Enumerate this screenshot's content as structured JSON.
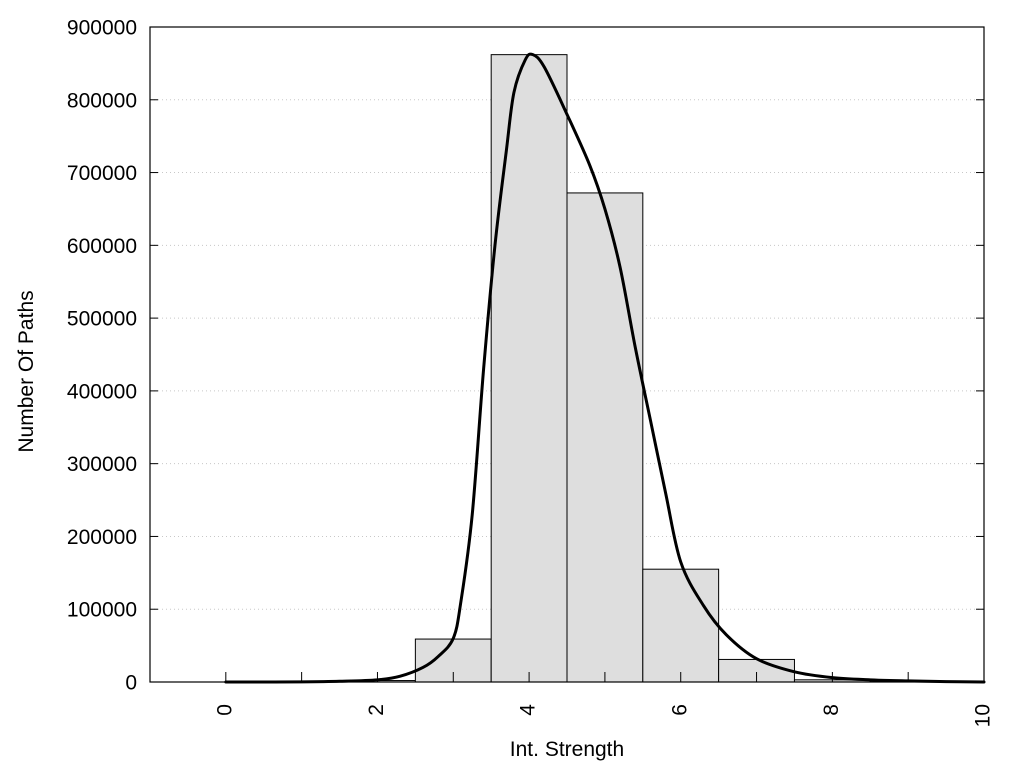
{
  "chart_data": {
    "type": "bar",
    "title": "",
    "xlabel": "Int. Strength",
    "ylabel": "Number Of Paths",
    "xlim": [
      -1,
      10
    ],
    "ylim": [
      0,
      900000
    ],
    "x_ticks": [
      0,
      2,
      4,
      6,
      8,
      10
    ],
    "x_tick_labels": [
      "0",
      "2",
      "4",
      "6",
      "8",
      "10"
    ],
    "y_ticks": [
      0,
      100000,
      200000,
      300000,
      400000,
      500000,
      600000,
      700000,
      800000,
      900000
    ],
    "y_tick_labels": [
      "0",
      "100000",
      "200000",
      "300000",
      "400000",
      "500000",
      "600000",
      "700000",
      "800000",
      "900000"
    ],
    "grid": "horizontal dotted",
    "bar_color": "#dedede",
    "bar_edge_color": "#000000",
    "line_color": "#000000",
    "bars": {
      "bin_width": 1,
      "centers": [
        0,
        1,
        2,
        3,
        4,
        5,
        6,
        7,
        8,
        9,
        10
      ],
      "values": [
        0,
        0,
        2000,
        59000,
        862000,
        672000,
        155000,
        31000,
        3000,
        500,
        0
      ]
    },
    "fit_curve": {
      "x": [
        0,
        0.5,
        1,
        1.5,
        2,
        2.3,
        2.6,
        2.8,
        3,
        3.1,
        3.25,
        3.4,
        3.55,
        3.7,
        3.8,
        3.95,
        4.05,
        4.2,
        4.5,
        4.8,
        5,
        5.2,
        5.4,
        5.6,
        5.8,
        6,
        6.3,
        6.6,
        7,
        7.5,
        8,
        8.5,
        9,
        9.5,
        10
      ],
      "y": [
        0,
        0,
        200,
        1000,
        3000,
        8000,
        20000,
        35000,
        60000,
        110000,
        230000,
        430000,
        600000,
        730000,
        810000,
        855000,
        862000,
        845000,
        780000,
        710000,
        650000,
        570000,
        460000,
        360000,
        260000,
        165000,
        105000,
        65000,
        32000,
        14000,
        6000,
        3000,
        1500,
        500,
        0
      ]
    }
  }
}
